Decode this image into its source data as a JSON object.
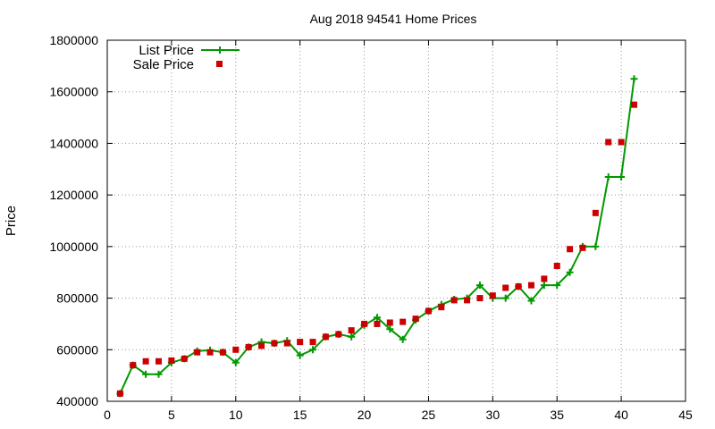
{
  "chart_data": {
    "type": "line",
    "title": "Aug 2018 94541 Home Prices",
    "xlabel": "",
    "ylabel": "Price",
    "xlim": [
      0,
      45
    ],
    "ylim": [
      400000,
      1800000
    ],
    "x_ticks": [
      "0",
      "5",
      "10",
      "15",
      "20",
      "25",
      "30",
      "35",
      "40",
      "45"
    ],
    "y_ticks": [
      "400000",
      "600000",
      "800000",
      "1000000",
      "1200000",
      "1400000",
      "1600000",
      "1800000"
    ],
    "grid": true,
    "legend_position": "top-left",
    "series": [
      {
        "name": "List Price",
        "style": "line+plus",
        "color": "#009900",
        "x": [
          1,
          2,
          3,
          4,
          5,
          6,
          7,
          8,
          9,
          10,
          11,
          12,
          13,
          14,
          15,
          16,
          17,
          18,
          19,
          20,
          21,
          22,
          23,
          24,
          25,
          26,
          27,
          28,
          29,
          30,
          31,
          32,
          33,
          34,
          35,
          36,
          37,
          38,
          39,
          40,
          41
        ],
        "y": [
          430000,
          540000,
          505000,
          505000,
          550000,
          565000,
          595000,
          598000,
          590000,
          550000,
          610000,
          630000,
          625000,
          635000,
          578000,
          600000,
          650000,
          660000,
          650000,
          695000,
          725000,
          680000,
          640000,
          715000,
          750000,
          775000,
          795000,
          800000,
          850000,
          800000,
          800000,
          845000,
          790000,
          850000,
          850000,
          900000,
          1000000,
          1000000,
          1270000,
          1270000,
          1650000
        ]
      },
      {
        "name": "Sale Price",
        "style": "square",
        "color": "#cc0000",
        "x": [
          1,
          2,
          3,
          4,
          5,
          6,
          7,
          8,
          9,
          10,
          11,
          12,
          13,
          14,
          15,
          16,
          17,
          18,
          19,
          20,
          21,
          22,
          23,
          24,
          25,
          26,
          27,
          28,
          29,
          30,
          31,
          32,
          33,
          34,
          35,
          36,
          37,
          38,
          39,
          40,
          41
        ],
        "y": [
          430000,
          540000,
          555000,
          555000,
          558000,
          565000,
          590000,
          590000,
          590000,
          600000,
          610000,
          615000,
          625000,
          625000,
          630000,
          630000,
          650000,
          660000,
          675000,
          700000,
          700000,
          705000,
          708000,
          720000,
          750000,
          765000,
          792000,
          792000,
          800000,
          810000,
          840000,
          845000,
          850000,
          875000,
          925000,
          990000,
          995000,
          1130000,
          1405000,
          1405000,
          1550000
        ]
      }
    ]
  }
}
